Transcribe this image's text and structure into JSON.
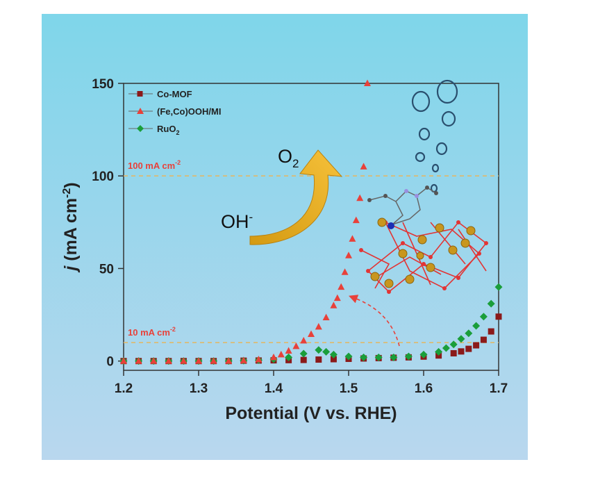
{
  "chart_data": {
    "type": "scatter",
    "xlabel": "Potential (V vs. RHE)",
    "ylabel_italic": "j",
    "ylabel_rest": " (mA cm",
    "ylabel_sup": "-2",
    "ylabel_close": ")",
    "xlim": [
      1.2,
      1.7
    ],
    "ylim": [
      -5,
      150
    ],
    "xticks": [
      "1.2",
      "1.3",
      "1.4",
      "1.5",
      "1.6",
      "1.7"
    ],
    "yticks": [
      "0",
      "50",
      "100",
      "150"
    ],
    "legend_position": "top-left",
    "series": [
      {
        "name": "Co-MOF",
        "color": "#8b1a1a",
        "marker": "square",
        "x": [
          1.2,
          1.22,
          1.24,
          1.26,
          1.28,
          1.3,
          1.32,
          1.34,
          1.36,
          1.38,
          1.4,
          1.42,
          1.44,
          1.46,
          1.48,
          1.5,
          1.52,
          1.54,
          1.56,
          1.58,
          1.6,
          1.62,
          1.64,
          1.65,
          1.66,
          1.67,
          1.68,
          1.69,
          1.7
        ],
        "y": [
          0,
          0,
          0,
          0,
          0,
          0,
          0,
          0,
          0.2,
          0.3,
          0.4,
          0.5,
          0.6,
          0.8,
          1.0,
          1.2,
          1.4,
          1.6,
          1.8,
          2.0,
          2.4,
          3.0,
          4.2,
          5.2,
          6.6,
          8.5,
          11.5,
          16,
          24
        ]
      },
      {
        "name": "(Fe,Co)OOH/MI",
        "color": "#e8413a",
        "marker": "triangle",
        "x": [
          1.2,
          1.22,
          1.24,
          1.26,
          1.28,
          1.3,
          1.32,
          1.34,
          1.36,
          1.38,
          1.4,
          1.41,
          1.42,
          1.43,
          1.44,
          1.45,
          1.46,
          1.47,
          1.48,
          1.485,
          1.49,
          1.495,
          1.5,
          1.505,
          1.51,
          1.515,
          1.52,
          1.525
        ],
        "y": [
          0,
          0,
          0,
          0,
          0,
          0,
          0,
          0,
          0.3,
          0.8,
          2,
          3.5,
          5.5,
          8,
          11,
          14.5,
          18.5,
          23.5,
          30,
          34,
          40,
          48,
          57,
          66,
          76,
          88,
          105,
          150
        ]
      },
      {
        "name": "RuO2",
        "color": "#1a9e3a",
        "marker": "diamond",
        "x": [
          1.2,
          1.22,
          1.24,
          1.26,
          1.28,
          1.3,
          1.32,
          1.34,
          1.36,
          1.38,
          1.4,
          1.42,
          1.44,
          1.46,
          1.47,
          1.48,
          1.5,
          1.52,
          1.54,
          1.56,
          1.58,
          1.6,
          1.62,
          1.63,
          1.64,
          1.65,
          1.66,
          1.67,
          1.68,
          1.69,
          1.7
        ],
        "y": [
          0,
          0,
          0,
          0,
          0,
          0,
          0,
          0,
          0.2,
          0.5,
          1,
          2,
          4,
          6,
          5,
          3.5,
          2.5,
          2,
          2,
          2,
          2.5,
          3.5,
          5,
          7,
          9,
          12,
          15,
          19,
          24,
          31,
          40
        ]
      }
    ],
    "reference_lines": [
      {
        "y": 100,
        "label": "100 mA cm",
        "sup": "-2"
      },
      {
        "y": 10,
        "label": "10 mA cm",
        "sup": "-2"
      }
    ],
    "annotations": {
      "o2_text": "O",
      "o2_sub": "2",
      "oh_text": "OH",
      "oh_sup": "-"
    }
  },
  "colors": {
    "background_top": "#7fd6ea",
    "background_bottom": "#b9d7ee",
    "ref_line": "#e0b86a",
    "arrow": "#f0b21c",
    "atom_gold": "#c8961e",
    "bond_red": "#e23434",
    "bubble": "#2a4f6e"
  }
}
